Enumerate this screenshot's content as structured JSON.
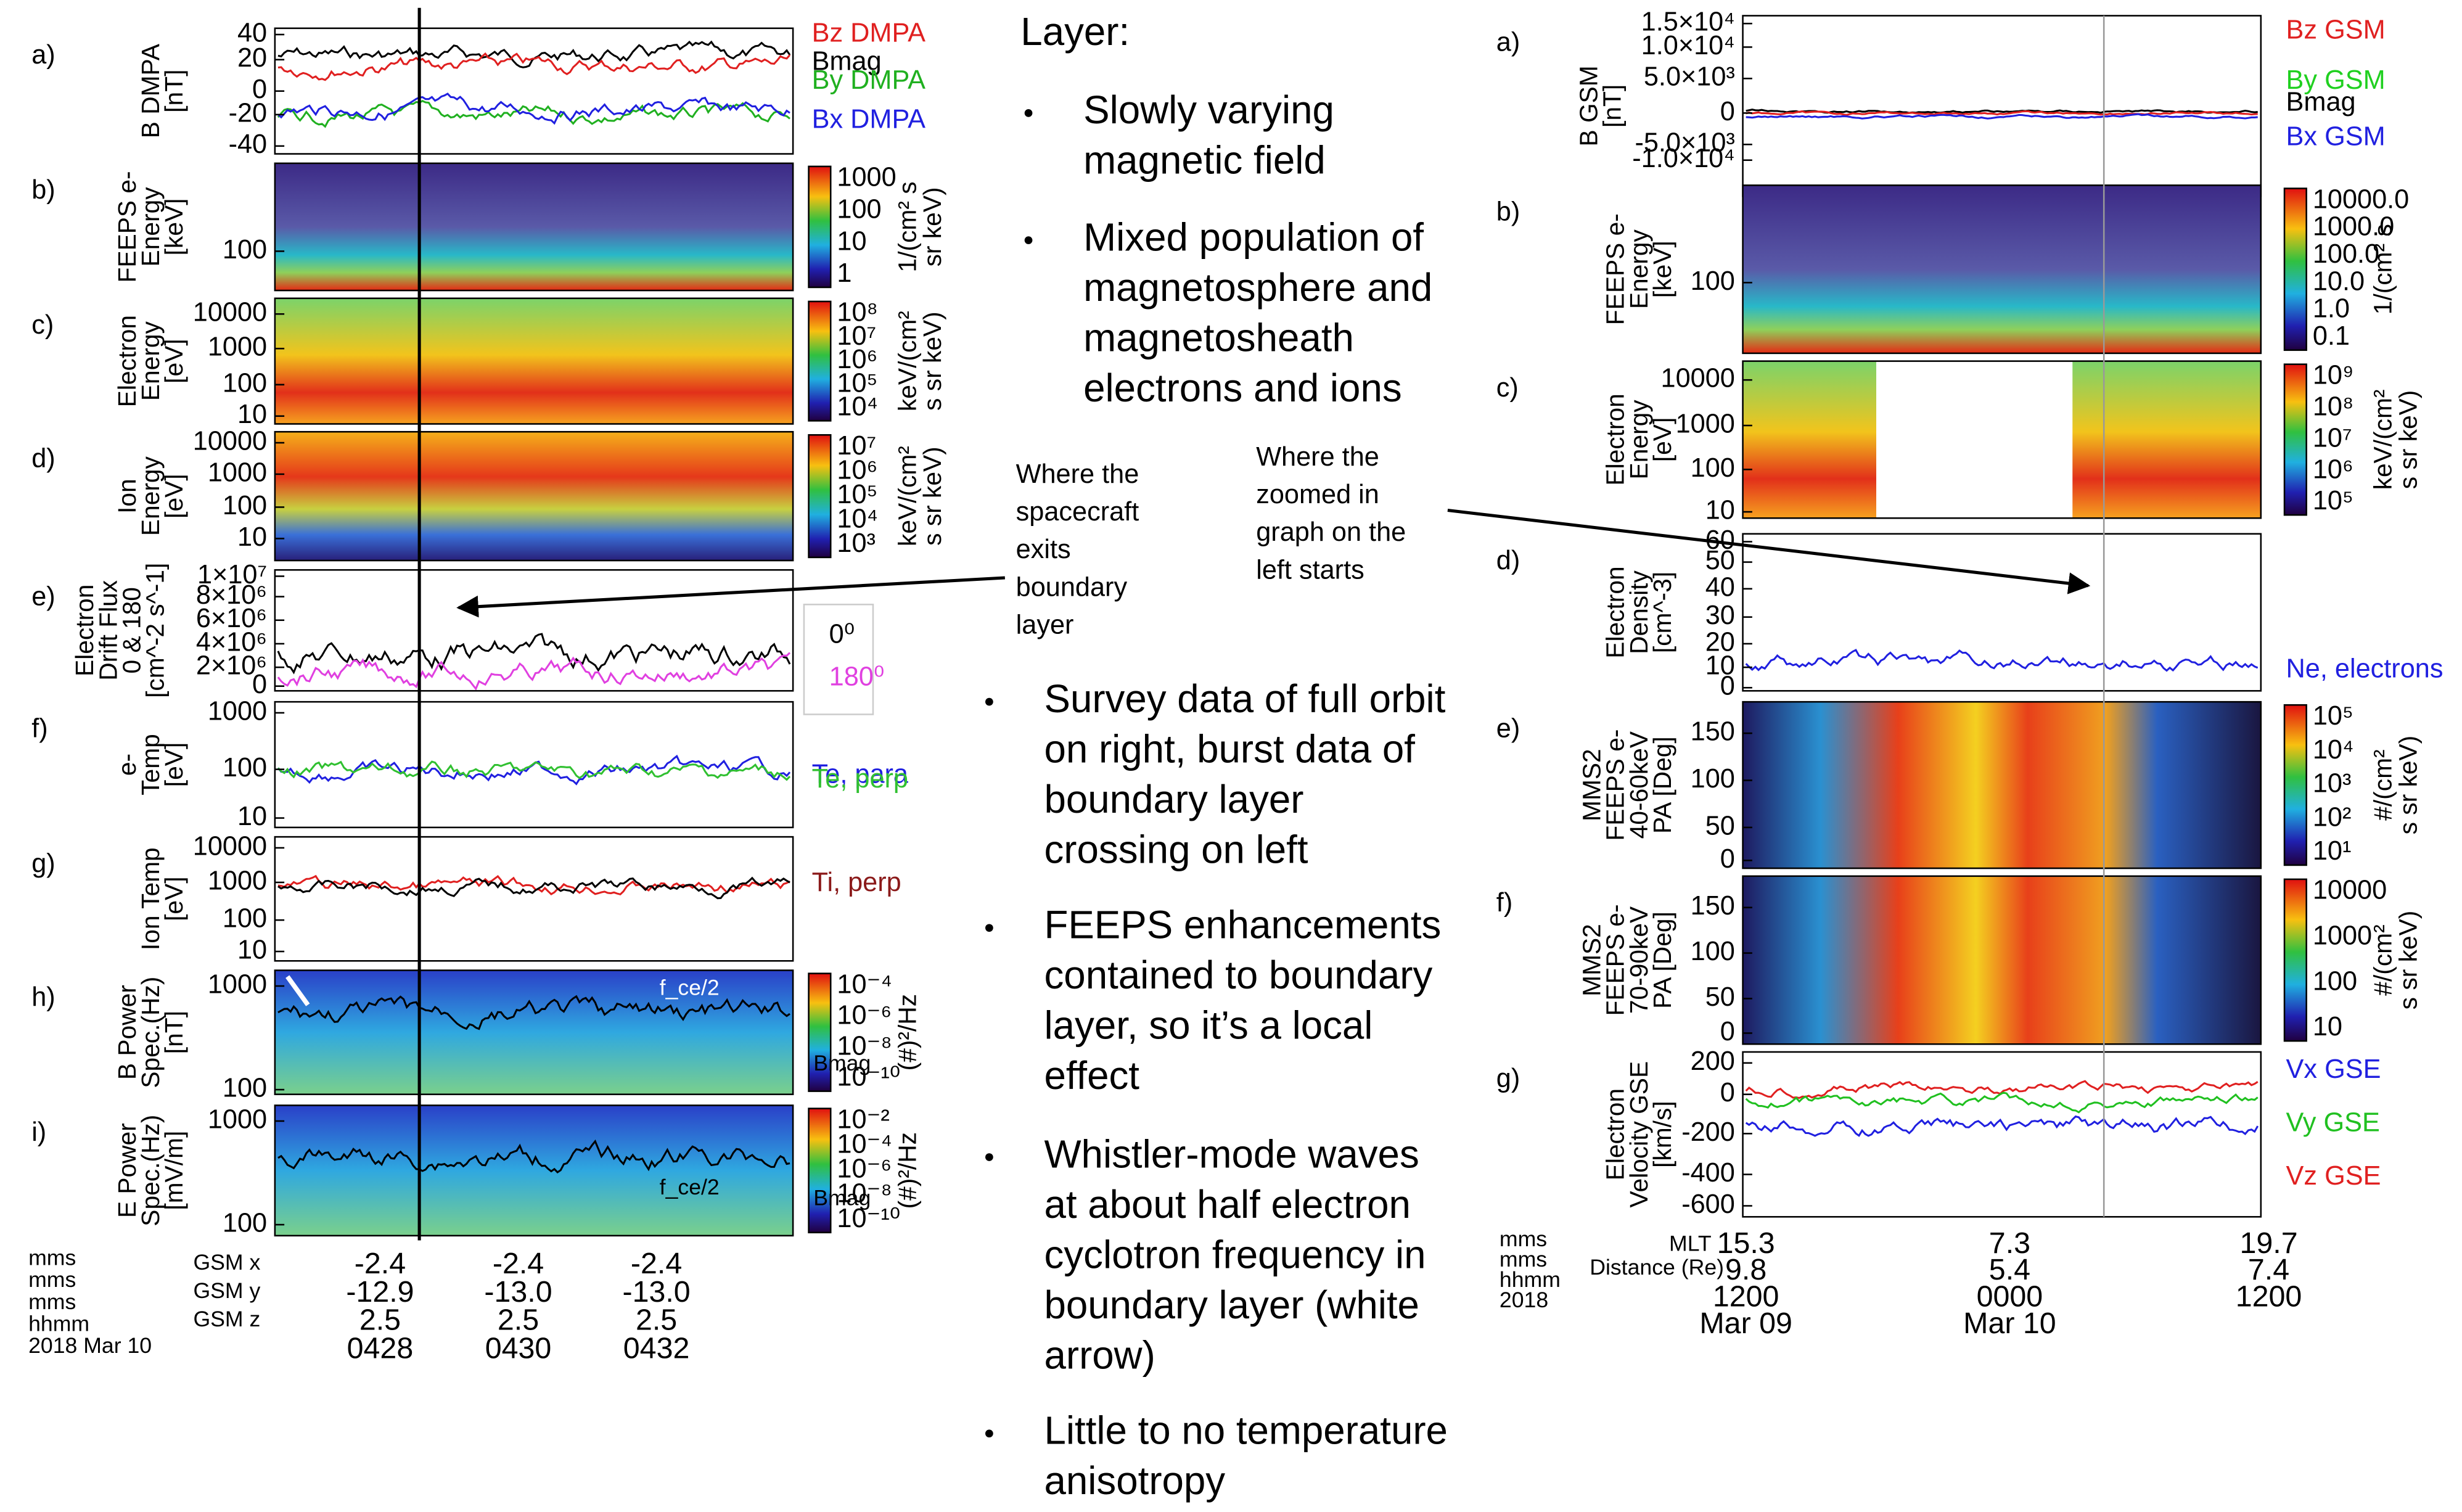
{
  "left_figure": {
    "panels": [
      {
        "label": "a)",
        "ylabel": [
          "B DMPA",
          "[nT]"
        ],
        "yticks": [
          "40",
          "20",
          "0",
          "-20",
          "-40"
        ],
        "legend": [
          "Bz DMPA",
          "Bmag",
          "By DMPA",
          "Bx DMPA"
        ]
      },
      {
        "label": "b)",
        "ylabel": [
          "FEEPS e-",
          "Energy",
          "[keV]"
        ],
        "yticks": [
          "100"
        ],
        "colorbar_ticks": [
          "1000",
          "100",
          "10",
          "1"
        ],
        "colorbar_label": [
          "1/(cm² s",
          "sr keV)"
        ]
      },
      {
        "label": "c)",
        "ylabel": [
          "Electron",
          "Energy",
          "[eV]"
        ],
        "yticks": [
          "10000",
          "1000",
          "100",
          "10"
        ],
        "colorbar_ticks": [
          "10⁸",
          "10⁷",
          "10⁶",
          "10⁵",
          "10⁴"
        ],
        "colorbar_label": [
          "keV/(cm²",
          "s sr keV)"
        ]
      },
      {
        "label": "d)",
        "ylabel": [
          "Ion",
          "Energy",
          "[eV]"
        ],
        "yticks": [
          "10000",
          "1000",
          "100",
          "10"
        ],
        "colorbar_ticks": [
          "10⁷",
          "10⁶",
          "10⁵",
          "10⁴",
          "10³"
        ],
        "colorbar_label": [
          "keV/(cm²",
          "s sr keV)"
        ]
      },
      {
        "label": "e)",
        "ylabel": [
          "Electron",
          "Drift Flux",
          "0 & 180",
          "[cm^-2 s^-1]"
        ],
        "yticks": [
          "1×10⁷",
          "8×10⁶",
          "6×10⁶",
          "4×10⁶",
          "2×10⁶",
          "0"
        ],
        "legend": [
          "0⁰",
          "180⁰"
        ]
      },
      {
        "label": "f)",
        "ylabel": [
          "e-",
          "Temp",
          "[eV]"
        ],
        "yticks": [
          "1000",
          "100",
          "10"
        ],
        "legend": [
          "Te, para",
          "Te, perp"
        ]
      },
      {
        "label": "g)",
        "ylabel": [
          "Ion Temp",
          "[eV]"
        ],
        "yticks": [
          "10000",
          "1000",
          "100",
          "10"
        ],
        "legend": [
          "Ti, perp"
        ]
      },
      {
        "label": "h)",
        "ylabel": [
          "B Power",
          "Spec.(Hz)",
          "[nT]"
        ],
        "yticks": [
          "1000",
          "100"
        ],
        "colorbar_ticks": [
          "10⁻⁴",
          "10⁻⁶",
          "10⁻⁸",
          "10⁻¹⁰"
        ],
        "colorbar_label": [
          "(#)²/Hz"
        ],
        "annotations": [
          "f_ce/2",
          "Bmag"
        ]
      },
      {
        "label": "i)",
        "ylabel": [
          "E Power",
          "Spec.(Hz)",
          "[mV/m]"
        ],
        "yticks": [
          "1000",
          "100"
        ],
        "colorbar_ticks": [
          "10⁻²",
          "10⁻⁴",
          "10⁻⁶",
          "10⁻⁸",
          "10⁻¹⁰"
        ],
        "colorbar_label": [
          "(#)²/Hz"
        ],
        "annotations": [
          "f_ce/2",
          "Bmag"
        ]
      }
    ],
    "footer": {
      "row_labels": [
        "mms",
        "mms",
        "mms",
        "hhmm",
        "2018 Mar 10"
      ],
      "axis_labels": [
        "GSM x",
        "GSM y",
        "GSM z"
      ],
      "columns": [
        [
          "-2.4",
          "-12.9",
          "2.5",
          "0428"
        ],
        [
          "-2.4",
          "-13.0",
          "2.5",
          "0430"
        ],
        [
          "-2.4",
          "-13.0",
          "2.5",
          "0432"
        ]
      ]
    }
  },
  "text": {
    "heading": "Layer:",
    "bullets_top": [
      [
        "Slowly varying",
        "magnetic field"
      ],
      [
        "Mixed population of",
        "magnetosphere and",
        "magnetosheath",
        "electrons and ions"
      ]
    ],
    "bullets_bottom": [
      [
        "Survey data of full orbit",
        "on right, burst data of",
        "boundary layer",
        "crossing on left"
      ],
      [
        "FEEPS enhancements",
        "contained to boundary",
        "layer, so it’s a local",
        "effect"
      ],
      [
        "Whistler-mode waves",
        "at about half electron",
        "cyclotron frequency in",
        "boundary layer (white",
        "arrow)"
      ],
      [
        "Little to no temperature",
        "anisotropy"
      ]
    ]
  },
  "annotations": [
    [
      "Where the",
      "spacecraft",
      "exits",
      "boundary",
      "layer"
    ],
    [
      "Where the",
      "zoomed in",
      "graph on the",
      "left starts"
    ]
  ],
  "right_figure": {
    "panels": [
      {
        "label": "a)",
        "ylabel": [
          "B GSM",
          "[nT]"
        ],
        "yticks": [
          "1.5×10⁴",
          "1.0×10⁴",
          "5.0×10³",
          "0",
          "-5.0×10³",
          "-1.0×10⁴"
        ],
        "legend": [
          "Bz GSM",
          "By GSM",
          "Bmag",
          "Bx GSM"
        ]
      },
      {
        "label": "b)",
        "ylabel": [
          "FEEPS e-",
          "Energy",
          "[keV]"
        ],
        "yticks": [
          "100"
        ],
        "colorbar_ticks": [
          "10000.0",
          "1000.0",
          "100.0",
          "10.0",
          "1.0",
          "0.1"
        ],
        "colorbar_label": [
          "1/(cm² s"
        ]
      },
      {
        "label": "c)",
        "ylabel": [
          "Electron",
          "Energy",
          "[eV]"
        ],
        "yticks": [
          "10000",
          "1000",
          "100",
          "10"
        ],
        "colorbar_ticks": [
          "10⁹",
          "10⁸",
          "10⁷",
          "10⁶",
          "10⁵"
        ],
        "colorbar_label": [
          "keV/(cm²",
          "s sr keV)"
        ]
      },
      {
        "label": "d)",
        "ylabel": [
          "Electron",
          "Density",
          "[cm^-3]"
        ],
        "yticks": [
          "60",
          "50",
          "40",
          "30",
          "20",
          "10",
          "0"
        ],
        "legend": [
          "Ne, electrons"
        ]
      },
      {
        "label": "e)",
        "ylabel": [
          "MMS2",
          "FEEPS e-",
          "40-60keV",
          "PA [Deg]"
        ],
        "yticks": [
          "150",
          "100",
          "50",
          "0"
        ],
        "colorbar_ticks": [
          "10⁵",
          "10⁴",
          "10³",
          "10²",
          "10¹"
        ],
        "colorbar_label": [
          "#/(cm²",
          "s sr keV)"
        ]
      },
      {
        "label": "f)",
        "ylabel": [
          "MMS2",
          "FEEPS e-",
          "70-90keV",
          "PA [Deg]"
        ],
        "yticks": [
          "150",
          "100",
          "50",
          "0"
        ],
        "colorbar_ticks": [
          "10000",
          "1000",
          "100",
          "10"
        ],
        "colorbar_label": [
          "#/(cm²",
          "s sr keV)"
        ]
      },
      {
        "label": "g)",
        "ylabel": [
          "Electron",
          "Velocity GSE",
          "[km/s]"
        ],
        "yticks": [
          "200",
          "0",
          "-200",
          "-400",
          "-600"
        ],
        "legend": [
          "Vx GSE",
          "Vy GSE",
          "Vz GSE"
        ]
      }
    ],
    "footer": {
      "row_labels": [
        "mms",
        "mms",
        "hhmm",
        "2018"
      ],
      "axis_labels": [
        "MLT",
        "Distance (Re)"
      ],
      "columns": [
        [
          "15.3",
          "9.8",
          "1200",
          "Mar 09"
        ],
        [
          "7.3",
          "5.4",
          "0000",
          "Mar 10"
        ],
        [
          "19.7",
          "7.4",
          "1200"
        ]
      ]
    }
  }
}
